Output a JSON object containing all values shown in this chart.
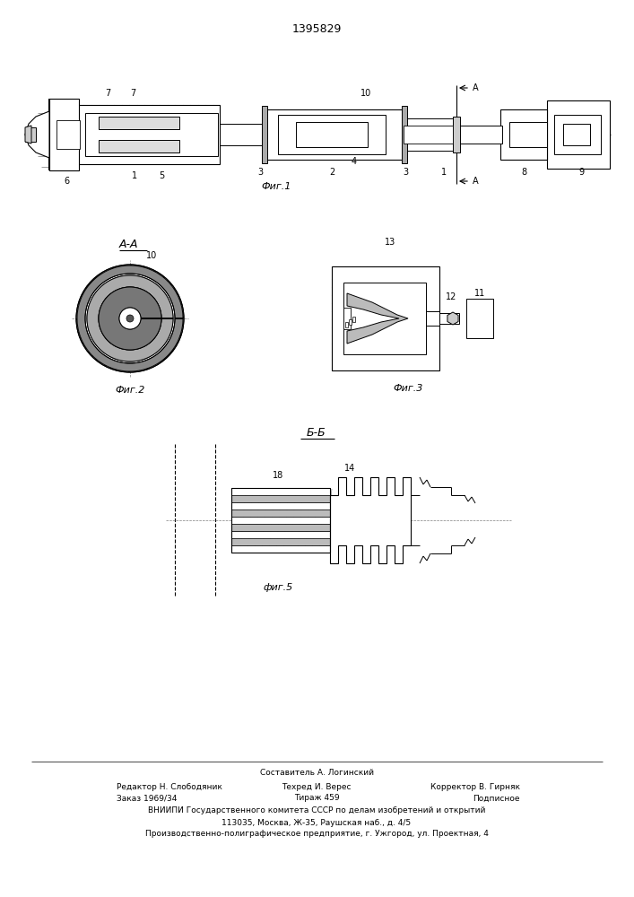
{
  "title": "1395829",
  "background_color": "#ffffff",
  "line_color": "#000000",
  "fig1_label": "Фиг.1",
  "fig2_label": "Фиг.2",
  "fig3_label": "Фиг.3",
  "fig5_label": "фиг.5",
  "section_AA": "А-А",
  "section_BB": "Б-Б",
  "footer1_left": "Редактор Н. Слободяник",
  "footer1_center": "Составитель А. Логинский",
  "footer1_right": "Корректор В. Гирняк",
  "footer2_left": "Заказ 1969/34",
  "footer2_center": "Техред И. Верес",
  "footer2_right": "Подписное",
  "footer3_center": "Тираж 459",
  "footer4": "ВНИИПИ Государственного комитета СССР по делам изобретений и открытий",
  "footer5": "113035, Москва, Ж-35, Раушская наб., д. 4/5",
  "footer6": "Производственно-полиграфическое предприятие, г. Ужгород, ул. Проектная, 4"
}
